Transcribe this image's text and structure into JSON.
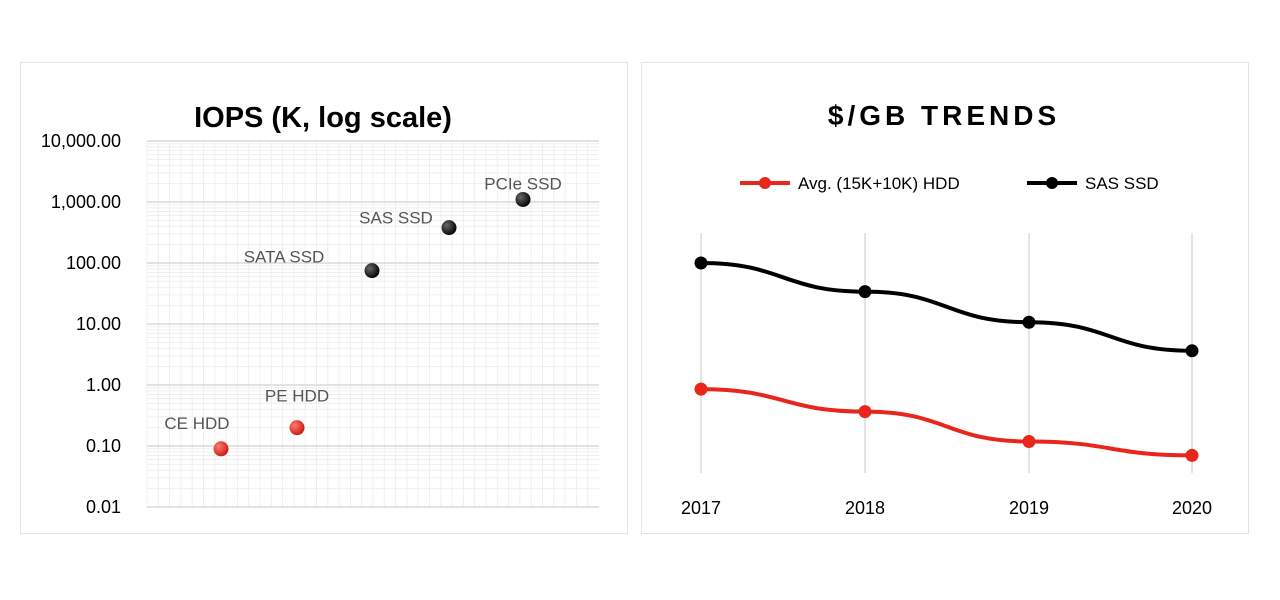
{
  "colors": {
    "hdd": "#e8261b",
    "ssd": "#000000",
    "grid": "#dcdcdc"
  },
  "chart_data": [
    {
      "type": "scatter",
      "title": "IOPS (K, log scale)",
      "y_scale": "log",
      "ylim": [
        0.01,
        10000
      ],
      "yticks": [
        "10,000.00",
        "1,000.00",
        "100.00",
        "10.00",
        "1.00",
        "0.10",
        "0.01"
      ],
      "grid": true,
      "legend": "none",
      "points": [
        {
          "label": "CE HDD",
          "x": 1,
          "y": 0.09,
          "group": "hdd"
        },
        {
          "label": "PE HDD",
          "x": 2,
          "y": 0.2,
          "group": "hdd"
        },
        {
          "label": "SATA SSD",
          "x": 3,
          "y": 75,
          "group": "ssd"
        },
        {
          "label": "SAS SSD",
          "x": 4,
          "y": 380,
          "group": "ssd"
        },
        {
          "label": "PCIe SSD",
          "x": 5,
          "y": 1100,
          "group": "ssd"
        }
      ]
    },
    {
      "type": "line",
      "title": "$/GB TRENDS",
      "categories": [
        "2017",
        "2018",
        "2019",
        "2020"
      ],
      "legend": "top",
      "grid": true,
      "series": [
        {
          "name": "Avg. (15K+10K) HDD",
          "color": "#e8261b",
          "values": [
            0.35,
            0.25,
            0.16,
            0.13
          ]
        },
        {
          "name": "SAS SSD",
          "color": "#000000",
          "values": [
            2.3,
            1.5,
            0.95,
            0.62
          ]
        }
      ]
    }
  ]
}
